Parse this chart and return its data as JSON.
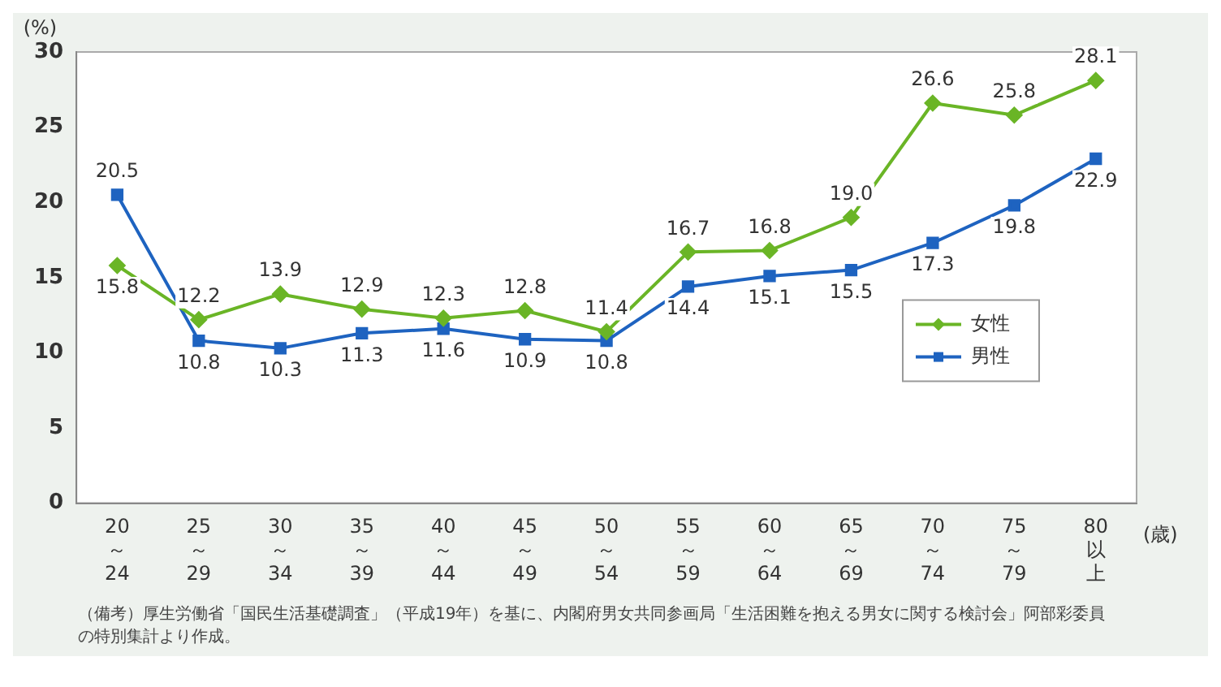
{
  "chart_data": {
    "type": "line",
    "ylabel": "(%)",
    "xlabel": "(歳)",
    "categories": [
      "20～24",
      "25～29",
      "30～34",
      "35～39",
      "40～44",
      "45～49",
      "50～54",
      "55～59",
      "60～64",
      "65～69",
      "70～74",
      "75～79",
      "80以上"
    ],
    "series": [
      {
        "name": "女性",
        "color": "#6ab526",
        "marker": "diamond",
        "values": [
          15.8,
          12.2,
          13.9,
          12.9,
          12.3,
          12.8,
          11.4,
          16.7,
          16.8,
          19.0,
          26.6,
          25.8,
          28.1
        ],
        "value_labels": [
          "15.8",
          "12.2",
          "13.9",
          "12.9",
          "12.3",
          "12.8",
          "11.4",
          "16.7",
          "16.8",
          "19.0",
          "26.6",
          "25.8",
          "28.1"
        ]
      },
      {
        "name": "男性",
        "color": "#1e63c0",
        "marker": "square",
        "values": [
          20.5,
          10.8,
          10.3,
          11.3,
          11.6,
          10.9,
          10.8,
          14.4,
          15.1,
          15.5,
          17.3,
          19.8,
          22.9
        ],
        "value_labels": [
          "20.5",
          "10.8",
          "10.3",
          "11.3",
          "11.6",
          "10.9",
          "10.8",
          "14.4",
          "15.1",
          "15.5",
          "17.3",
          "19.8",
          "22.9"
        ]
      }
    ],
    "ylim": [
      0,
      30
    ],
    "yticks": [
      0,
      5,
      10,
      15,
      20,
      25,
      30
    ],
    "grid": false,
    "legend": "right",
    "line_style": "solid",
    "annotations": [
      "（備考）厚生労働省「国民生活基礎調査」（平成19年）を基に、内閣府男女共同参画局「生活困難を抱える男女に関する検討会」阿部彩委員の特別集計より作成。"
    ]
  }
}
